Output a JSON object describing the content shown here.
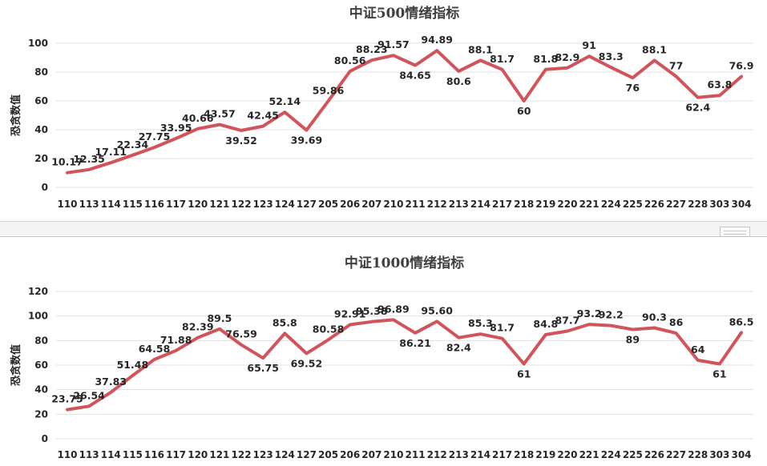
{
  "chart_data": [
    {
      "type": "line",
      "title": "中证500情绪指标",
      "xlabel": "",
      "ylabel": "恐贪数值",
      "ylim": [
        0,
        100
      ],
      "yticks": [
        0,
        20,
        40,
        60,
        80,
        100
      ],
      "grid": true,
      "categories": [
        "110",
        "113",
        "114",
        "115",
        "116",
        "117",
        "120",
        "121",
        "122",
        "123",
        "124",
        "127",
        "205",
        "206",
        "207",
        "210",
        "211",
        "212",
        "213",
        "214",
        "217",
        "218",
        "219",
        "220",
        "221",
        "224",
        "225",
        "226",
        "227",
        "228",
        "303",
        "304"
      ],
      "values": [
        10.17,
        12.35,
        17.11,
        22.34,
        27.75,
        33.95,
        40.66,
        43.57,
        39.52,
        42.45,
        52.14,
        39.69,
        59.86,
        80.56,
        88.23,
        91.57,
        84.65,
        94.89,
        80.6,
        88.1,
        81.7,
        60,
        81.8,
        82.9,
        91,
        83.3,
        76,
        88.1,
        77,
        62.4,
        63.8,
        76.9
      ],
      "labels": [
        "10.17",
        "12.35",
        "17.11",
        "22.34",
        "27.75",
        "33.95",
        "40.66",
        "43.57",
        "39.52",
        "42.45",
        "52.14",
        "39.69",
        "59.86",
        "80.56",
        "88.23",
        "91.57",
        "84.65",
        "94.89",
        "80.6",
        "88.1",
        "81.7",
        "60",
        "81.8",
        "82.9",
        "91",
        "83.3",
        "76",
        "88.1",
        "77",
        "62.4",
        "63.8",
        "76.9"
      ]
    },
    {
      "type": "line",
      "title": "中证1000情绪指标",
      "xlabel": "",
      "ylabel": "恐贪数值",
      "ylim": [
        0,
        120
      ],
      "yticks": [
        0,
        20,
        40,
        60,
        80,
        100,
        120
      ],
      "grid": true,
      "categories": [
        "110",
        "113",
        "114",
        "115",
        "116",
        "117",
        "120",
        "121",
        "122",
        "123",
        "124",
        "127",
        "205",
        "206",
        "207",
        "210",
        "211",
        "212",
        "213",
        "214",
        "217",
        "218",
        "219",
        "220",
        "221",
        "224",
        "225",
        "226",
        "227",
        "228",
        "303",
        "304"
      ],
      "values": [
        23.75,
        26.54,
        37.83,
        51.48,
        64.58,
        71.88,
        82.39,
        89.5,
        76.59,
        65.75,
        85.8,
        69.52,
        80.58,
        92.91,
        95.38,
        96.89,
        86.21,
        95.6,
        82.4,
        85.3,
        81.7,
        61,
        84.8,
        87.7,
        93.2,
        92.2,
        89,
        90.3,
        86,
        64,
        61,
        86.5
      ],
      "labels": [
        "23.75",
        "26.54",
        "37.83",
        "51.48",
        "64.58",
        "71.88",
        "82.39",
        "89.5",
        "76.59",
        "65.75",
        "85.8",
        "69.52",
        "80.58",
        "92.91",
        "95.38",
        "96.89",
        "86.21",
        "95.60",
        "82.4",
        "85.3",
        "81.7",
        "61",
        "84.8",
        "87.7",
        "93.2",
        "92.2",
        "89",
        "90.3",
        "86",
        "64",
        "61",
        "86.5"
      ]
    }
  ],
  "colors": {
    "series": "#d0545a",
    "grid": "#e1e1e1",
    "text": "#262626"
  }
}
